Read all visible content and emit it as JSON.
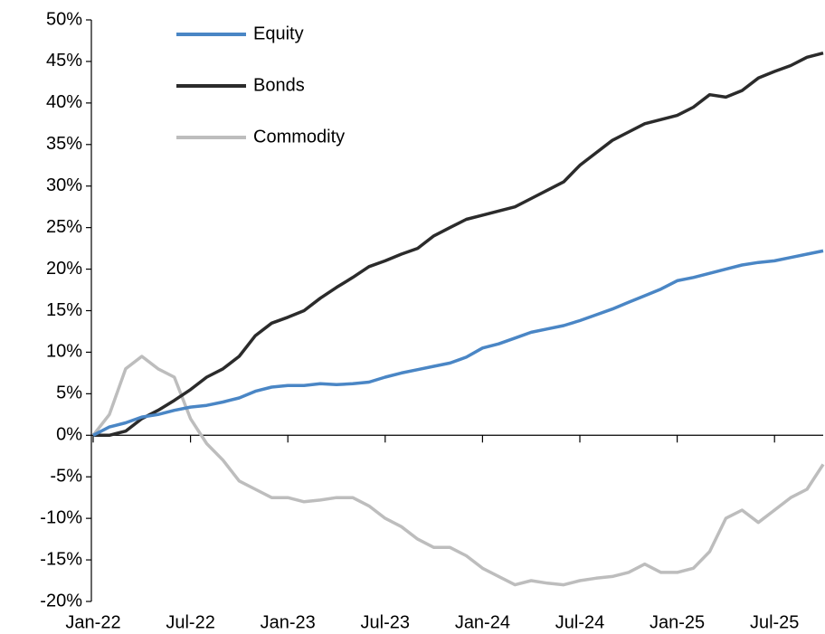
{
  "chart_data": {
    "type": "line",
    "categories": [
      "Jan-22",
      null,
      null,
      null,
      null,
      null,
      "Jul-22",
      null,
      null,
      null,
      null,
      null,
      "Jan-23",
      null,
      null,
      null,
      null,
      null,
      "Jul-23",
      null,
      null,
      null,
      null,
      null,
      "Jan-24",
      null,
      null,
      null,
      null,
      null,
      "Jul-24",
      null,
      null,
      null,
      null,
      null,
      "Jan-25",
      null,
      null,
      null,
      null,
      null,
      "Jul-25",
      null,
      null,
      null
    ],
    "series": [
      {
        "name": "Equity",
        "color": "#4a86c5",
        "values": [
          0,
          1,
          1.5,
          2.2,
          2.5,
          3,
          3.4,
          3.6,
          4,
          4.5,
          5.3,
          5.8,
          6,
          6,
          6.2,
          6.1,
          6.2,
          6.4,
          7,
          7.5,
          7.9,
          8.3,
          8.7,
          9.4,
          10.5,
          11,
          11.7,
          12.4,
          12.8,
          13.2,
          13.8,
          14.5,
          15.2,
          16,
          16.8,
          17.6,
          18.6,
          19,
          19.5,
          20,
          20.5,
          20.8,
          21,
          21.4,
          21.8,
          22.2
        ]
      },
      {
        "name": "Bonds",
        "color": "#2b2b2b",
        "values": [
          0,
          0,
          0.5,
          2,
          3,
          4.2,
          5.5,
          7,
          8,
          9.5,
          12,
          13.5,
          14.2,
          15,
          16.5,
          17.8,
          19,
          20.3,
          21,
          21.8,
          22.5,
          24,
          25,
          26,
          26.5,
          27,
          27.5,
          28.5,
          29.5,
          30.5,
          32.5,
          34,
          35.5,
          36.5,
          37.5,
          38,
          38.5,
          39.5,
          41,
          40.7,
          41.5,
          43,
          43.8,
          44.5,
          45.5,
          46
        ]
      },
      {
        "name": "Commodity",
        "color": "#bdbdbd",
        "values": [
          0,
          2.5,
          8,
          9.5,
          8,
          7,
          2,
          -1,
          -3,
          -5.5,
          -6.5,
          -7.5,
          -7.5,
          -8,
          -7.8,
          -7.5,
          -7.5,
          -8.5,
          -10,
          -11,
          -12.5,
          -13.5,
          -13.5,
          -14.5,
          -16,
          -17,
          -18,
          -17.5,
          -17.8,
          -18,
          -17.5,
          -17.2,
          -17,
          -16.5,
          -15.5,
          -16.5,
          -16.5,
          -16,
          -14,
          -10,
          -9,
          -10.5,
          -9,
          -7.5,
          -6.5,
          -3.5
        ]
      }
    ],
    "ylim": [
      -20,
      50
    ],
    "yticks": [
      {
        "value": -20,
        "label": "-20%"
      },
      {
        "value": -15,
        "label": "-15%"
      },
      {
        "value": -10,
        "label": "-10%"
      },
      {
        "value": -5,
        "label": "-5%"
      },
      {
        "value": 0,
        "label": "0%"
      },
      {
        "value": 5,
        "label": "5%"
      },
      {
        "value": 10,
        "label": "10%"
      },
      {
        "value": 15,
        "label": "15%"
      },
      {
        "value": 20,
        "label": "20%"
      },
      {
        "value": 25,
        "label": "25%"
      },
      {
        "value": 30,
        "label": "30%"
      },
      {
        "value": 35,
        "label": "35%"
      },
      {
        "value": 40,
        "label": "40%"
      },
      {
        "value": 45,
        "label": "45%"
      },
      {
        "value": 50,
        "label": "50%"
      }
    ],
    "grid": false,
    "legend": "top-left"
  }
}
